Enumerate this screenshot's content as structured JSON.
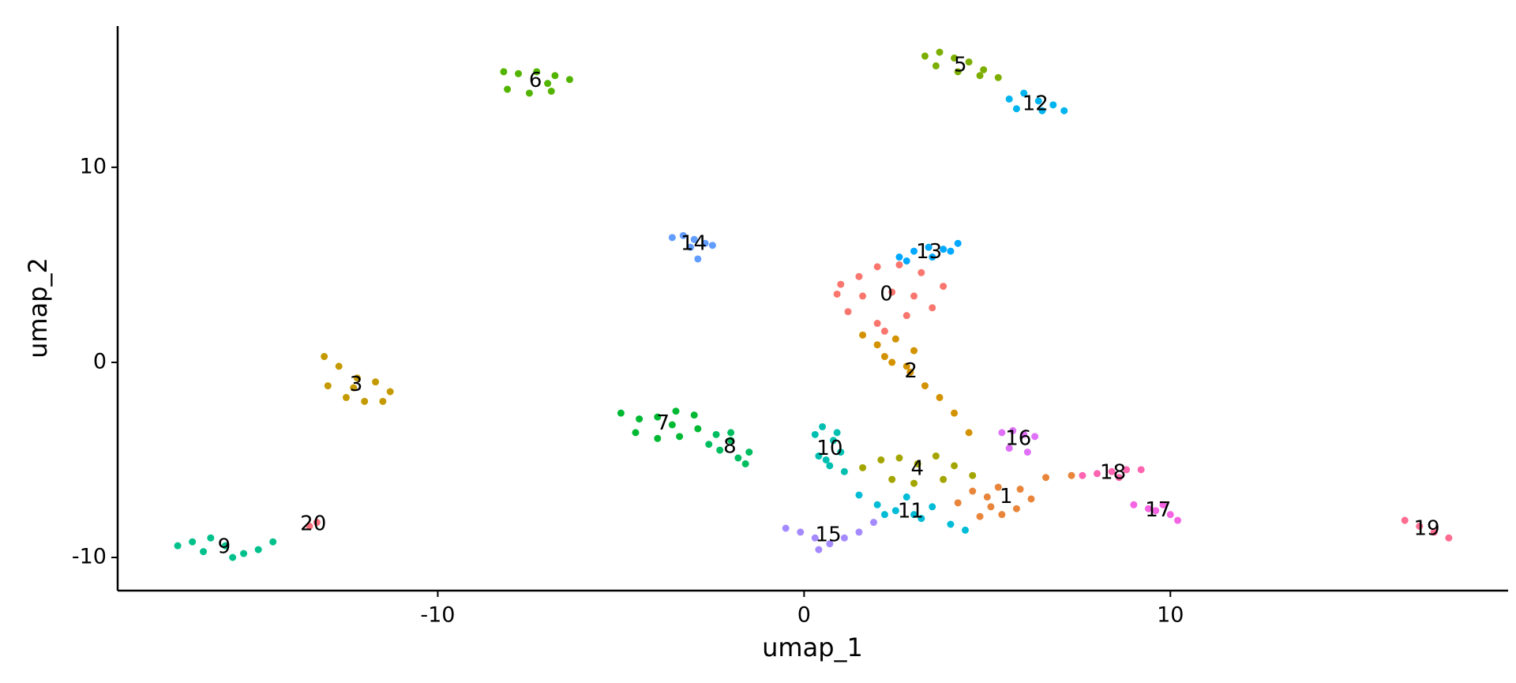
{
  "chart_data": {
    "type": "scatter",
    "xlabel": "umap_1",
    "ylabel": "umap_2",
    "xlim": [
      -18.74,
      19.22
    ],
    "ylim": [
      -11.7,
      17.24
    ],
    "xticks": [
      -10,
      0,
      10
    ],
    "yticks": [
      -10,
      0,
      10
    ],
    "series": [
      {
        "name": "0",
        "color": "#f8766d",
        "x": [
          0.9,
          1.5,
          2.0,
          2.6,
          3.2,
          3.8,
          1.2,
          2.0,
          2.8,
          3.5,
          1.6,
          2.4,
          1.0,
          3.0,
          2.2
        ],
        "y": [
          3.5,
          4.4,
          4.9,
          5.0,
          4.6,
          3.9,
          2.6,
          2.0,
          2.4,
          2.8,
          3.4,
          3.6,
          4.0,
          3.4,
          1.6
        ]
      },
      {
        "name": "1",
        "color": "#e8853a",
        "x": [
          4.2,
          4.6,
          5.0,
          5.4,
          5.8,
          6.2,
          4.8,
          5.3,
          5.9,
          6.6,
          7.3,
          5.1
        ],
        "y": [
          -7.2,
          -6.6,
          -6.9,
          -7.8,
          -7.5,
          -7.0,
          -7.9,
          -6.4,
          -6.5,
          -5.9,
          -5.8,
          -7.4
        ]
      },
      {
        "name": "2",
        "color": "#d39200",
        "x": [
          1.6,
          2.0,
          2.5,
          3.0,
          2.4,
          2.9,
          3.3,
          3.7,
          4.1,
          4.5,
          2.2,
          2.8
        ],
        "y": [
          1.4,
          0.9,
          1.2,
          0.6,
          0,
          -0.5,
          -1.2,
          -1.8,
          -2.6,
          -3.6,
          0.3,
          -0.2
        ]
      },
      {
        "name": "3",
        "color": "#c49a00",
        "x": [
          -13.1,
          -12.7,
          -12.2,
          -11.7,
          -11.3,
          -13.0,
          -12.5,
          -12.0,
          -11.5,
          -12.3
        ],
        "y": [
          0.3,
          -0.2,
          -0.8,
          -1.0,
          -1.5,
          -1.2,
          -1.8,
          -2.0,
          -2.0,
          -1.3
        ]
      },
      {
        "name": "4",
        "color": "#a3a500",
        "x": [
          1.6,
          2.1,
          2.6,
          3.1,
          3.6,
          4.1,
          4.6,
          2.4,
          3.0,
          3.8
        ],
        "y": [
          -5.4,
          -5.0,
          -4.9,
          -5.2,
          -4.8,
          -5.3,
          -5.8,
          -6.0,
          -6.2,
          -6.0
        ]
      },
      {
        "name": "5",
        "color": "#7cae00",
        "x": [
          3.3,
          3.7,
          4.1,
          4.5,
          4.9,
          5.3,
          3.6,
          4.2,
          4.8
        ],
        "y": [
          15.7,
          15.9,
          15.6,
          15.4,
          15.0,
          14.6,
          15.2,
          14.9,
          14.7
        ]
      },
      {
        "name": "6",
        "color": "#53b400",
        "x": [
          -8.2,
          -7.8,
          -7.3,
          -6.8,
          -6.4,
          -8.1,
          -7.5,
          -6.9,
          -7.0
        ],
        "y": [
          14.9,
          14.8,
          14.9,
          14.7,
          14.5,
          14.0,
          13.8,
          13.9,
          14.3
        ]
      },
      {
        "name": "7",
        "color": "#00b933",
        "x": [
          -5.0,
          -4.5,
          -4.0,
          -3.5,
          -3.0,
          -4.6,
          -4.0,
          -3.4,
          -2.9,
          -3.6
        ],
        "y": [
          -2.6,
          -2.9,
          -2.8,
          -2.5,
          -2.7,
          -3.6,
          -3.9,
          -3.8,
          -3.4,
          -3.2
        ]
      },
      {
        "name": "8",
        "color": "#00bd5f",
        "x": [
          -2.6,
          -2.3,
          -2.0,
          -1.8,
          -1.6,
          -2.4,
          -2.0,
          -1.5
        ],
        "y": [
          -4.2,
          -4.5,
          -4.0,
          -4.9,
          -5.2,
          -3.7,
          -3.6,
          -4.6
        ]
      },
      {
        "name": "9",
        "color": "#00c08b",
        "x": [
          -17.1,
          -16.7,
          -16.2,
          -15.8,
          -15.3,
          -14.9,
          -14.5,
          -16.4,
          -15.6
        ],
        "y": [
          -9.4,
          -9.2,
          -9.0,
          -9.4,
          -9.8,
          -9.6,
          -9.2,
          -9.7,
          -10.0
        ]
      },
      {
        "name": "10",
        "color": "#00bfb0",
        "x": [
          0.3,
          0.5,
          0.8,
          1.0,
          0.4,
          0.7,
          1.1,
          0.9,
          0.6
        ],
        "y": [
          -3.7,
          -3.3,
          -4.0,
          -4.6,
          -4.8,
          -5.3,
          -5.6,
          -3.6,
          -5.0
        ]
      },
      {
        "name": "11",
        "color": "#00bcd6",
        "x": [
          1.5,
          2.0,
          2.5,
          3.0,
          3.5,
          4.0,
          4.4,
          2.8,
          3.2,
          2.2
        ],
        "y": [
          -6.8,
          -7.3,
          -7.6,
          -7.8,
          -7.4,
          -8.3,
          -8.6,
          -6.9,
          -8.0,
          -7.8
        ]
      },
      {
        "name": "12",
        "color": "#00b4ef",
        "x": [
          5.6,
          6.0,
          6.4,
          6.8,
          7.1,
          5.8,
          6.5
        ],
        "y": [
          13.5,
          13.8,
          13.4,
          13.2,
          12.9,
          13.0,
          12.9
        ]
      },
      {
        "name": "13",
        "color": "#00a8ff",
        "x": [
          2.6,
          3.0,
          3.4,
          3.8,
          4.2,
          2.8,
          3.5,
          4.0
        ],
        "y": [
          5.4,
          5.7,
          5.9,
          5.8,
          6.1,
          5.2,
          5.4,
          5.7
        ]
      },
      {
        "name": "14",
        "color": "#619cff",
        "x": [
          -3.6,
          -3.3,
          -3.0,
          -2.7,
          -2.5,
          -3.1,
          -2.9
        ],
        "y": [
          6.4,
          6.5,
          6.3,
          6.1,
          6.0,
          5.9,
          5.3
        ]
      },
      {
        "name": "15",
        "color": "#a58aff",
        "x": [
          -0.5,
          -0.1,
          0.3,
          0.7,
          1.1,
          1.5,
          1.9,
          0.4
        ],
        "y": [
          -8.5,
          -8.7,
          -9.0,
          -9.3,
          -9.0,
          -8.7,
          -8.2,
          -9.6
        ]
      },
      {
        "name": "16",
        "color": "#df70f8",
        "x": [
          5.4,
          5.7,
          6.0,
          6.3,
          5.6,
          6.1
        ],
        "y": [
          -3.6,
          -3.5,
          -3.7,
          -3.8,
          -4.4,
          -4.6
        ]
      },
      {
        "name": "17",
        "color": "#f564e3",
        "x": [
          9.0,
          9.4,
          9.8,
          10.2,
          9.6,
          10.0
        ],
        "y": [
          -7.3,
          -7.5,
          -7.3,
          -8.1,
          -7.6,
          -7.8
        ]
      },
      {
        "name": "18",
        "color": "#ff64b0",
        "x": [
          7.6,
          8.0,
          8.4,
          8.8,
          9.2,
          8.6
        ],
        "y": [
          -5.8,
          -5.7,
          -5.6,
          -5.5,
          -5.5,
          -5.9
        ]
      },
      {
        "name": "19",
        "color": "#ff6c91",
        "x": [
          16.4,
          16.8,
          17.2,
          17.6
        ],
        "y": [
          -8.1,
          -8.4,
          -8.7,
          -9.0
        ]
      },
      {
        "name": "20",
        "color": "#fb6f7e",
        "x": [
          -13.5,
          -13.3
        ],
        "y": [
          -8.4,
          -8.2
        ]
      }
    ]
  }
}
